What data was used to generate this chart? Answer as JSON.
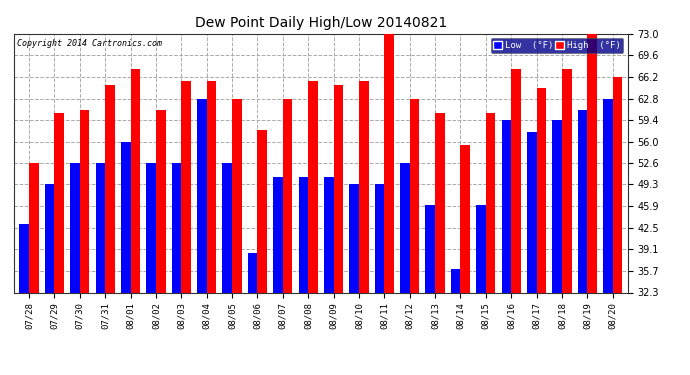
{
  "title": "Dew Point Daily High/Low 20140821",
  "copyright": "Copyright 2014 Cartronics.com",
  "legend_low": "Low  (°F)",
  "legend_high": "High  (°F)",
  "dates": [
    "07/28",
    "07/29",
    "07/30",
    "07/31",
    "08/01",
    "08/02",
    "08/03",
    "08/04",
    "08/05",
    "08/06",
    "08/07",
    "08/08",
    "08/09",
    "08/10",
    "08/11",
    "08/12",
    "08/13",
    "08/14",
    "08/15",
    "08/16",
    "08/17",
    "08/18",
    "08/19",
    "08/20"
  ],
  "low_values": [
    43.0,
    49.3,
    52.6,
    52.6,
    56.0,
    52.6,
    52.6,
    62.8,
    52.6,
    38.5,
    50.5,
    50.5,
    50.5,
    49.3,
    49.3,
    52.6,
    46.0,
    36.0,
    46.0,
    59.4,
    57.5,
    59.4,
    61.0,
    62.8
  ],
  "high_values": [
    52.6,
    60.5,
    61.0,
    65.0,
    67.5,
    61.0,
    65.5,
    65.5,
    62.8,
    57.8,
    62.8,
    65.5,
    65.0,
    65.5,
    73.0,
    62.8,
    60.5,
    55.5,
    60.5,
    67.5,
    64.5,
    67.5,
    73.0,
    66.2
  ],
  "ylim": [
    32.3,
    73.0
  ],
  "yticks": [
    32.3,
    35.7,
    39.1,
    42.5,
    45.9,
    49.3,
    52.6,
    56.0,
    59.4,
    62.8,
    66.2,
    69.6,
    73.0
  ],
  "low_color": "#0000ff",
  "high_color": "#ff0000",
  "background_color": "#ffffff",
  "grid_color": "#aaaaaa",
  "bar_width": 0.38,
  "figwidth": 6.9,
  "figheight": 3.75,
  "dpi": 100
}
